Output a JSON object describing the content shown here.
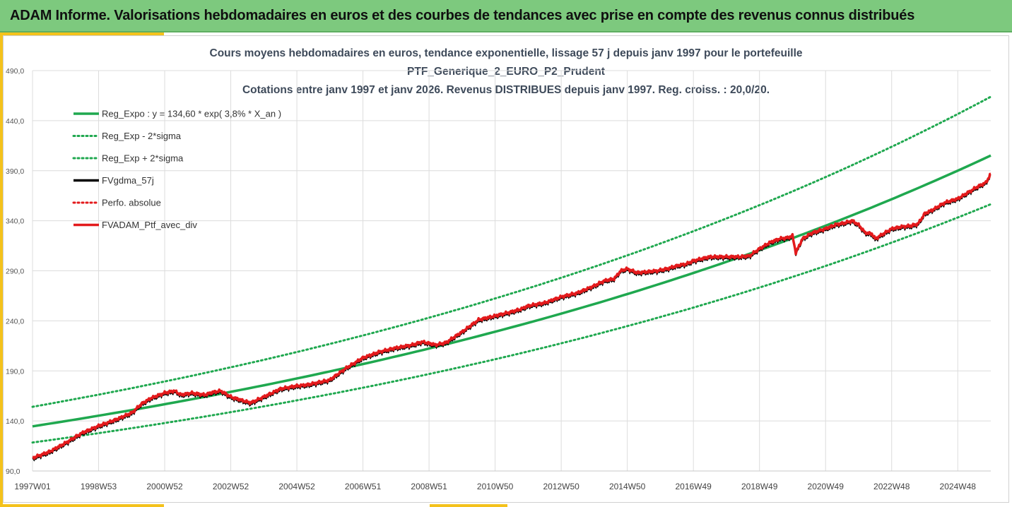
{
  "header": {
    "title": "ADAM Informe. Valorisations hebdomadaires en euros et des courbes de tendances avec prise en compte des revenus connus distribués"
  },
  "colors": {
    "banner": "#7dc97e",
    "accent": "#f4c21c",
    "regression": "#1fa84f",
    "fv": "#000000",
    "ptf": "#e31a1c"
  },
  "chart_data": {
    "type": "line",
    "title_lines": [
      "Cours moyens hebdomadaires  en euros, tendance exponentielle, lissage 57 j depuis janv 1997 pour le portefeuille",
      "PTF_Generique_2_EURO_P2_Prudent",
      "Cotations entre janv 1997 et janv 2026. Revenus DISTRIBUES depuis janv 1997. Reg. croiss. : 20,0/20."
    ],
    "ylim": [
      90,
      490
    ],
    "yticks": [
      "490,0",
      "440,0",
      "390,0",
      "340,0",
      "290,0",
      "240,0",
      "190,0",
      "140,0",
      "90,0"
    ],
    "ytick_values": [
      490,
      440,
      390,
      340,
      290,
      240,
      190,
      140,
      90
    ],
    "xlim": [
      1997.0,
      2026.0
    ],
    "xticks": [
      "1997W01",
      "1998W53",
      "2000W52",
      "2002W52",
      "2004W52",
      "2006W51",
      "2008W51",
      "2010W50",
      "2012W50",
      "2014W50",
      "2016W49",
      "2018W49",
      "2020W49",
      "2022W48",
      "2024W48"
    ],
    "xtick_values": [
      1997.0,
      1999.0,
      2001.0,
      2003.0,
      2005.0,
      2007.0,
      2009.0,
      2011.0,
      2013.0,
      2015.0,
      2017.0,
      2019.0,
      2021.0,
      2023.0,
      2025.0
    ],
    "legend": [
      {
        "name": "Reg_Expo : y = 134,60 * exp( 3,8% *  X_an )",
        "color": "#1fa84f",
        "style": "solid"
      },
      {
        "name": "Reg_Exp - 2*sigma",
        "color": "#1fa84f",
        "style": "dotted"
      },
      {
        "name": "Reg_Exp + 2*sigma",
        "color": "#1fa84f",
        "style": "dotted"
      },
      {
        "name": "FVgdma_57j",
        "color": "#000000",
        "style": "solid"
      },
      {
        "name": "Perfo. absolue",
        "color": "#e31a1c",
        "style": "dotted"
      },
      {
        "name": "FVADAM_Ptf_avec_div",
        "color": "#e31a1c",
        "style": "solid"
      }
    ],
    "regression": {
      "start": 134.6,
      "rate": 0.038,
      "lower_factor": 0.88,
      "upper_factor": 1.145
    },
    "series": [
      {
        "name": "FVADAM_Ptf_avec_div",
        "x": [
          1997.0,
          1997.5,
          1998.0,
          1998.5,
          1999.0,
          1999.5,
          2000.0,
          2000.3,
          2000.6,
          2001.0,
          2001.3,
          2001.5,
          2001.8,
          2002.2,
          2002.5,
          2002.7,
          2003.0,
          2003.4,
          2003.6,
          2004.0,
          2004.5,
          2005.0,
          2005.3,
          2005.6,
          2006.0,
          2006.5,
          2007.0,
          2007.5,
          2008.0,
          2008.5,
          2008.8,
          2009.2,
          2009.5,
          2010.0,
          2010.5,
          2011.0,
          2011.5,
          2011.8,
          2012.0,
          2012.5,
          2013.0,
          2013.5,
          2014.0,
          2014.3,
          2014.6,
          2014.8,
          2015.0,
          2015.3,
          2015.6,
          2015.9,
          2016.2,
          2016.5,
          2016.8,
          2017.0,
          2017.5,
          2018.0,
          2018.4,
          2018.7,
          2019.0,
          2019.3,
          2019.6,
          2019.85,
          2020.0,
          2020.1,
          2020.3,
          2020.6,
          2021.0,
          2021.3,
          2021.6,
          2021.8,
          2022.0,
          2022.2,
          2022.4,
          2022.5,
          2022.7,
          2022.8,
          2023.0,
          2023.3,
          2023.6,
          2023.8,
          2024.0,
          2024.3,
          2024.6,
          2025.0,
          2025.3,
          2025.6,
          2025.85,
          2026.0
        ],
        "values": [
          103,
          109,
          118,
          128,
          135,
          141,
          148,
          157,
          163,
          168,
          170,
          166,
          168,
          166,
          169,
          170,
          164,
          160,
          158,
          164,
          172,
          175,
          176,
          178,
          181,
          193,
          203,
          209,
          213,
          216,
          219,
          216,
          218,
          229,
          241,
          245,
          249,
          252,
          255,
          258,
          264,
          268,
          275,
          280,
          282,
          290,
          292,
          288,
          289,
          290,
          292,
          295,
          297,
          300,
          304,
          304,
          304,
          305,
          312,
          318,
          322,
          323,
          325,
          308,
          322,
          328,
          332,
          336,
          338,
          340,
          336,
          328,
          327,
          322,
          326,
          328,
          332,
          334,
          335,
          337,
          347,
          352,
          358,
          362,
          368,
          374,
          378,
          387
        ]
      }
    ]
  }
}
